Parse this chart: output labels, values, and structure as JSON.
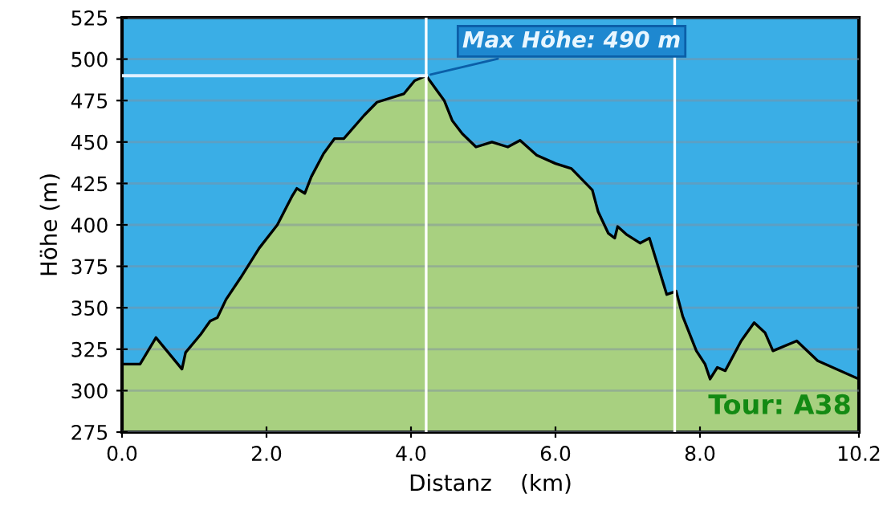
{
  "chart_data": {
    "type": "area",
    "xlabel": "Distanz    (km)",
    "ylabel": "Höhe (m)",
    "x": [
      0.0,
      0.25,
      0.47,
      0.83,
      0.88,
      1.09,
      1.22,
      1.32,
      1.44,
      1.64,
      1.9,
      2.15,
      2.35,
      2.42,
      2.53,
      2.62,
      2.79,
      2.94,
      3.07,
      3.35,
      3.53,
      3.9,
      4.05,
      4.21,
      4.46,
      4.57,
      4.71,
      4.9,
      5.12,
      5.34,
      5.51,
      5.74,
      6.0,
      6.22,
      6.51,
      6.59,
      6.73,
      6.82,
      6.86,
      6.99,
      7.17,
      7.3,
      7.54,
      7.67,
      7.76,
      7.95,
      8.07,
      8.14,
      8.24,
      8.35,
      8.57,
      8.75,
      8.9,
      9.01,
      9.34,
      9.63,
      10.2
    ],
    "series": [
      {
        "color": "#a8d080",
        "values": [
          316,
          316,
          332,
          313,
          323,
          334,
          342,
          344,
          355,
          368,
          386,
          400,
          417,
          422,
          419,
          429,
          443,
          452,
          452,
          466,
          474,
          479,
          487,
          490,
          475,
          463,
          455,
          447,
          450,
          447,
          451,
          442,
          437,
          434,
          421,
          408,
          395,
          392,
          399,
          394,
          389,
          392,
          358,
          360,
          345,
          324,
          316,
          307,
          314,
          312,
          330,
          341,
          335,
          324,
          330,
          318,
          307
        ]
      },
      {
        "type": "line",
        "color": "#e0f0ff",
        "x": [
          0,
          4.21
        ],
        "values": [
          490,
          490
        ]
      }
    ],
    "xlim": [
      0,
      10.2
    ],
    "ylim": [
      275,
      525
    ],
    "xticks": [
      {
        "value": 0,
        "label": "0.0"
      },
      {
        "value": 2,
        "label": "2.0"
      },
      {
        "value": 4,
        "label": "4.0"
      },
      {
        "value": 6,
        "label": "6.0"
      },
      {
        "value": 8,
        "label": "8.0"
      },
      10.2
    ],
    "yticks": [
      275,
      300,
      325,
      350,
      375,
      400,
      425,
      450,
      475,
      500,
      525
    ],
    "grid": "y",
    "ref_lines": [
      {
        "axis": "x",
        "value": 4.21,
        "color": "#ffffff"
      },
      {
        "axis": "x",
        "value": 7.65,
        "color": "#ffffff"
      }
    ],
    "annotations": [
      {
        "text": "Max Höhe: 490 m",
        "x": 4.21,
        "y": 490
      },
      "Tour: A38"
    ]
  }
}
